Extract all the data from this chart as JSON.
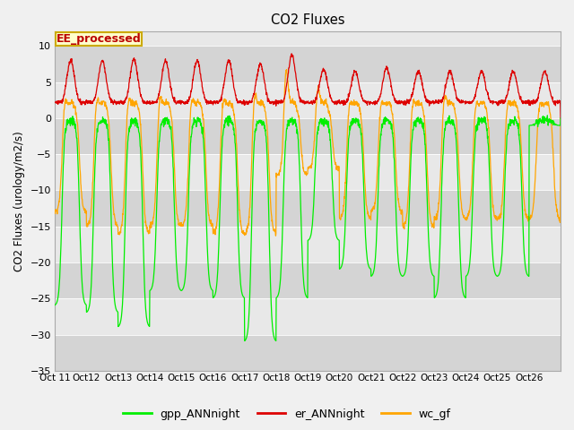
{
  "title": "CO2 Fluxes",
  "ylabel": "CO2 Fluxes (urology/m2/s)",
  "ylim": [
    -35,
    12
  ],
  "yticks": [
    -35,
    -30,
    -25,
    -20,
    -15,
    -10,
    -5,
    0,
    5,
    10
  ],
  "xlim": [
    0,
    16
  ],
  "xtick_labels": [
    "Oct 11",
    "Oct 12",
    "Oct 13",
    "Oct 14",
    "Oct 15",
    "Oct 16",
    "Oct 17",
    "Oct 18",
    "Oct 19",
    "Oct 20",
    "Oct 21",
    "Oct 22",
    "Oct 23",
    "Oct 24",
    "Oct 25",
    "Oct 26"
  ],
  "color_gpp": "#00ee00",
  "color_er": "#dd0000",
  "color_wc": "#ffa500",
  "fig_bg": "#f0f0f0",
  "plot_bg": "#e8e8e8",
  "band_light": "#e8e8e8",
  "band_dark": "#d4d4d4",
  "legend_bg": "#ffffcc",
  "legend_border": "#ccaa00",
  "gpp_troughs": [
    -26,
    -27,
    -29,
    -24,
    -24,
    -25,
    -31,
    -25,
    -17,
    -21,
    -22,
    -22,
    -25,
    -22,
    -22,
    -1
  ],
  "er_peaks": [
    8.0,
    8.0,
    8.2,
    8.0,
    8.0,
    8.0,
    7.5,
    8.8,
    6.8,
    6.5,
    7.0,
    6.5,
    6.5,
    6.5,
    6.5,
    6.5
  ],
  "wc_troughs": [
    -13,
    -15,
    -16,
    -15,
    -15,
    -16,
    -16,
    -8,
    -7,
    -14,
    -13,
    -15,
    -14,
    -14,
    -14,
    -14
  ],
  "wc_day_peaks": [
    3.0,
    3.0,
    3.0,
    3.5,
    3.0,
    3.0,
    4.0,
    7.5,
    4.5,
    2.5,
    2.5,
    2.5,
    3.5,
    2.5,
    2.5,
    2.0
  ],
  "er_night_base": 2.2,
  "n_points": 2000,
  "days": 16
}
